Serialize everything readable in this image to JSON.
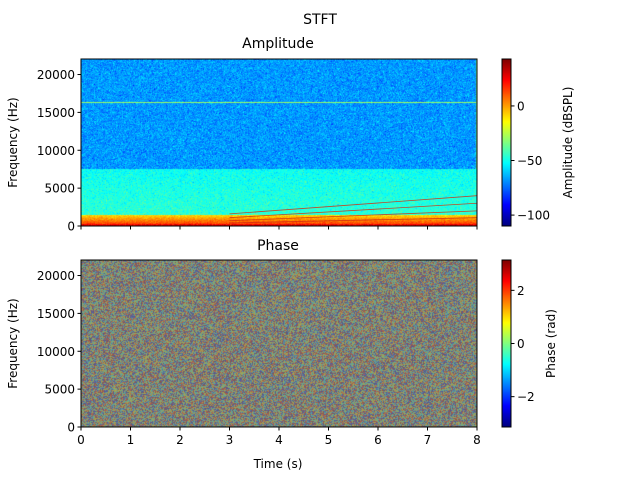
{
  "figure": {
    "suptitle": "STFT"
  },
  "chart_data": [
    {
      "type": "heatmap",
      "title": "Amplitude",
      "xlabel": "",
      "ylabel": "Frequency (Hz)",
      "xlim": [
        0,
        8
      ],
      "ylim": [
        0,
        22050
      ],
      "x_ticks": [
        0,
        1,
        2,
        3,
        4,
        5,
        6,
        7,
        8
      ],
      "x_tick_labels_shown": false,
      "y_ticks": [
        0,
        5000,
        10000,
        15000,
        20000
      ],
      "y_tick_labels": [
        "0",
        "5000",
        "10000",
        "15000",
        "20000"
      ],
      "colormap": "jet",
      "colorbar": {
        "label": "Amplitude (dBSPL)",
        "range": [
          -110,
          43
        ],
        "ticks": [
          -100,
          -50,
          0
        ],
        "tick_labels": [
          "−100",
          "−50",
          "0"
        ]
      },
      "features": {
        "tonal_line_hz": 16300,
        "band_edge_hz": 7500,
        "low_band_level_db": -45,
        "high_band_level_db": -68,
        "harmonic_sweeps": [
          {
            "start_time_s": 3.0,
            "start_hz": 1600,
            "end_time_s": 8.0,
            "end_hz": 4000
          },
          {
            "start_time_s": 3.0,
            "start_hz": 1100,
            "end_time_s": 8.0,
            "end_hz": 3000
          },
          {
            "start_time_s": 3.0,
            "start_hz": 700,
            "end_time_s": 8.0,
            "end_hz": 2000
          },
          {
            "start_time_s": 3.0,
            "start_hz": 400,
            "end_time_s": 8.0,
            "end_hz": 1100
          }
        ]
      }
    },
    {
      "type": "heatmap",
      "title": "Phase",
      "xlabel": "Time (s)",
      "ylabel": "Frequency (Hz)",
      "xlim": [
        0,
        8
      ],
      "ylim": [
        0,
        22050
      ],
      "x_ticks": [
        0,
        1,
        2,
        3,
        4,
        5,
        6,
        7,
        8
      ],
      "x_tick_labels": [
        "0",
        "1",
        "2",
        "3",
        "4",
        "5",
        "6",
        "7",
        "8"
      ],
      "y_ticks": [
        0,
        5000,
        10000,
        15000,
        20000
      ],
      "y_tick_labels": [
        "0",
        "5000",
        "10000",
        "15000",
        "20000"
      ],
      "colormap": "jet",
      "colorbar": {
        "label": "Phase (rad)",
        "range": [
          -3.14159,
          3.14159
        ],
        "ticks": [
          -2,
          0,
          2
        ],
        "tick_labels": [
          "−2",
          "0",
          "2"
        ]
      },
      "features": {
        "appearance": "random phase noise, mostly muted gray-green"
      }
    }
  ]
}
